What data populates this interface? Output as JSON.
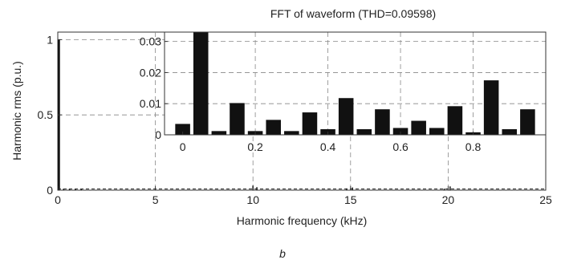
{
  "chart_data": [
    {
      "type": "bar",
      "title": "FFT of waveform (THD=0.09598)",
      "xlabel": "Harmonic frequency (kHz)",
      "ylabel": "Harmonic rms (p.u.)",
      "xlim": [
        0,
        25
      ],
      "ylim": [
        0,
        1.05
      ],
      "x_ticks": [
        "0",
        "5",
        "10",
        "15",
        "20",
        "25"
      ],
      "y_ticks": [
        "0",
        "0.5",
        "1"
      ],
      "grid": true,
      "fundamental": {
        "x": 0.05,
        "value": 1.0
      },
      "small_peaks": [
        {
          "x": 0.3,
          "value": 0.004
        },
        {
          "x": 0.6,
          "value": 0.006
        },
        {
          "x": 0.9,
          "value": 0.005
        },
        {
          "x": 1.2,
          "value": 0.004
        },
        {
          "x": 10.0,
          "value": 0.03
        },
        {
          "x": 10.2,
          "value": 0.02
        },
        {
          "x": 14.8,
          "value": 0.012
        },
        {
          "x": 15.1,
          "value": 0.018
        },
        {
          "x": 19.8,
          "value": 0.01
        },
        {
          "x": 20.1,
          "value": 0.025
        }
      ],
      "caption": "b"
    },
    {
      "type": "bar",
      "title": "",
      "xlabel": "",
      "ylabel": "",
      "xlim": [
        -0.05,
        1.0
      ],
      "ylim": [
        0,
        0.033
      ],
      "x_ticks": [
        "0",
        "0.2",
        "0.4",
        "0.6",
        "0.8"
      ],
      "y_ticks": [
        "0",
        "0.01",
        "0.02",
        "0.03"
      ],
      "grid": true,
      "x": [
        0.0,
        0.05,
        0.1,
        0.15,
        0.2,
        0.25,
        0.3,
        0.35,
        0.4,
        0.45,
        0.5,
        0.55,
        0.6,
        0.65,
        0.7,
        0.75,
        0.8,
        0.85,
        0.9,
        0.95
      ],
      "values": [
        0.0035,
        0.036,
        0.0012,
        0.0102,
        0.0012,
        0.0048,
        0.0012,
        0.0072,
        0.0018,
        0.0118,
        0.0018,
        0.0082,
        0.0022,
        0.0045,
        0.0022,
        0.0092,
        0.0008,
        0.0175,
        0.0018,
        0.0082
      ]
    }
  ]
}
